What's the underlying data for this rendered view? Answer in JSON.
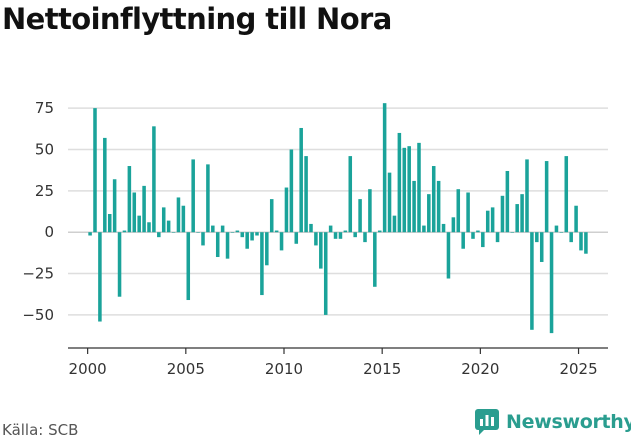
{
  "title": "Nettoinflyttning till Nora",
  "source": "Källa: SCB",
  "brand": {
    "name": "Newsworthy",
    "icon": "newsworthy-logo-icon",
    "color": "#2a9d8f"
  },
  "chart_data": {
    "type": "bar",
    "title": "Nettoinflyttning till Nora",
    "xlabel": "",
    "ylabel": "",
    "xlim": [
      1999,
      2026.5
    ],
    "ylim": [
      -70,
      92
    ],
    "grid": true,
    "bar_color": "#1aa39a",
    "y_ticks": [
      -50,
      -25,
      0,
      25,
      50,
      75
    ],
    "y_tick_labels": [
      "−50",
      "−25",
      "0",
      "25",
      "50",
      "75"
    ],
    "x_ticks": [
      2000,
      2005,
      2010,
      2015,
      2020,
      2025
    ],
    "x_tick_labels": [
      "2000",
      "2005",
      "2010",
      "2015",
      "2020",
      "2025"
    ],
    "period": "quarterly",
    "series": [
      {
        "start": "2000-Q1",
        "values": [
          -2,
          75,
          -54,
          57,
          11,
          32,
          -39,
          1,
          40,
          24,
          10,
          28,
          6,
          64,
          -3,
          15,
          7,
          0,
          21,
          16,
          -41,
          44,
          0,
          -8,
          41,
          4,
          -15,
          4,
          -16,
          0,
          1,
          -3,
          -10,
          -5,
          -2,
          -38,
          -20,
          20,
          1,
          -11,
          27,
          50,
          -7,
          63,
          46,
          5,
          -8,
          -22,
          -50,
          4,
          -4,
          -4,
          1,
          46,
          -3,
          20,
          -6,
          26,
          -33,
          1,
          78,
          36,
          10,
          60,
          51,
          52,
          31,
          54,
          4,
          23,
          40,
          31,
          5,
          -28,
          9,
          26,
          -10,
          24,
          -4,
          1,
          -9,
          13,
          15,
          -6,
          22,
          37,
          0,
          17,
          23,
          44,
          -59,
          -6,
          -18,
          43,
          -61,
          4,
          0,
          46,
          -6,
          16,
          -11,
          -13
        ]
      }
    ]
  }
}
